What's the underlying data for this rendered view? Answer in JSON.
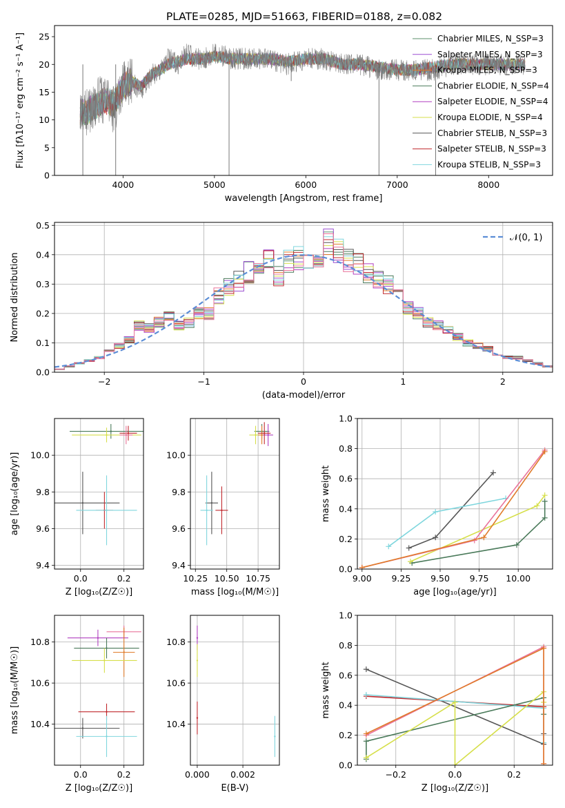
{
  "figure_title": "PLATE=0285, MJD=51663, FIBERID=0188, z=0.082",
  "chart_data": [
    {
      "id": "spectrum",
      "type": "line",
      "xlabel": "wavelength [Angstrom, rest frame]",
      "ylabel": "Flux [fλ10⁻¹⁷ erg cm⁻² s⁻¹ A⁻¹]",
      "xlim": [
        3250,
        8700
      ],
      "ylim": [
        0,
        27
      ],
      "xticks": [
        4000,
        5000,
        6000,
        7000,
        8000
      ],
      "yticks": [
        0,
        5,
        10,
        15,
        20,
        25
      ],
      "grid": false,
      "legend_position": "top-right",
      "data_x": [
        3530,
        3600,
        3700,
        3800,
        3900,
        4000,
        4100,
        4200,
        4300,
        4400,
        4500,
        4600,
        4700,
        4800,
        4900,
        5000,
        5200,
        5400,
        5600,
        5800,
        6000,
        6200,
        6400,
        6600,
        6800,
        7000,
        7200,
        7400,
        7600,
        7800,
        8000,
        8200,
        8400
      ],
      "data_y": [
        12,
        11,
        13,
        14,
        12,
        16,
        17,
        15,
        18,
        19,
        21,
        20,
        22,
        21,
        21,
        22,
        21,
        21,
        21,
        20,
        21,
        21,
        20,
        20,
        19,
        19,
        19,
        19,
        20,
        20,
        20,
        20,
        20
      ],
      "model_y": [
        11.5,
        11.5,
        12.5,
        13.5,
        13,
        16,
        17,
        16,
        18,
        19,
        20,
        20.5,
        21,
        21,
        21,
        21.5,
        21,
        21,
        21,
        20.5,
        21,
        21,
        20,
        20,
        19.5,
        19,
        19,
        19.5,
        20,
        20,
        20,
        20,
        20
      ],
      "series": [
        {
          "name": "Chabrier MILES, N_SSP=3",
          "color": "#5a8f6a"
        },
        {
          "name": "Salpeter MILES, N_SSP=3",
          "color": "#9b4fd1"
        },
        {
          "name": "Kroupa MILES, N_SSP=3",
          "color": "#e07b2a"
        },
        {
          "name": "Chabrier ELODIE, N_SSP=4",
          "color": "#4a7a5a"
        },
        {
          "name": "Salpeter ELODIE, N_SSP=4",
          "color": "#b03fbf"
        },
        {
          "name": "Kroupa ELODIE, N_SSP=4",
          "color": "#d6df4a"
        },
        {
          "name": "Chabrier STELIB, N_SSP=3",
          "color": "#555555"
        },
        {
          "name": "Salpeter STELIB, N_SSP=3",
          "color": "#c0282d"
        },
        {
          "name": "Kroupa STELIB, N_SSP=3",
          "color": "#7fd6dd"
        }
      ]
    },
    {
      "id": "residuals",
      "type": "line",
      "xlabel": "(data-model)/error",
      "ylabel": "Normed distribution",
      "xlim": [
        -2.5,
        2.5
      ],
      "ylim": [
        0,
        0.51
      ],
      "xticks": [
        -2,
        -1,
        0,
        1,
        2
      ],
      "yticks": [
        0.0,
        0.1,
        0.2,
        0.3,
        0.4,
        0.5
      ],
      "grid": true,
      "legend_position": "top-right",
      "legend": "𝒩(0, 1)",
      "bin_centers": [
        -2.45,
        -2.35,
        -2.25,
        -2.15,
        -2.05,
        -1.95,
        -1.85,
        -1.75,
        -1.65,
        -1.55,
        -1.45,
        -1.35,
        -1.25,
        -1.15,
        -1.05,
        -0.95,
        -0.85,
        -0.75,
        -0.65,
        -0.55,
        -0.45,
        -0.35,
        -0.25,
        -0.15,
        -0.05,
        0.05,
        0.15,
        0.25,
        0.35,
        0.45,
        0.55,
        0.65,
        0.75,
        0.85,
        0.95,
        1.05,
        1.15,
        1.25,
        1.35,
        1.45,
        1.55,
        1.65,
        1.75,
        1.85,
        1.95,
        2.05,
        2.15,
        2.25,
        2.35,
        2.45
      ],
      "hist_values": [
        0.01,
        0.02,
        0.03,
        0.04,
        0.05,
        0.07,
        0.09,
        0.11,
        0.16,
        0.15,
        0.17,
        0.19,
        0.16,
        0.17,
        0.2,
        0.2,
        0.26,
        0.29,
        0.31,
        0.34,
        0.37,
        0.39,
        0.33,
        0.38,
        0.39,
        0.39,
        0.36,
        0.44,
        0.41,
        0.38,
        0.37,
        0.34,
        0.31,
        0.3,
        0.27,
        0.22,
        0.2,
        0.17,
        0.16,
        0.14,
        0.12,
        0.1,
        0.09,
        0.08,
        0.06,
        0.05,
        0.05,
        0.04,
        0.03,
        0.02
      ],
      "hist_colors": [
        "#5a8f6a",
        "#9b4fd1",
        "#e07b2a",
        "#4a7a5a",
        "#b03fbf",
        "#d6df4a",
        "#555555",
        "#c0282d",
        "#7fd6dd",
        "#e9739a"
      ],
      "gaussian_color": "#5b8dd6"
    },
    {
      "id": "age_vs_Z",
      "type": "scatter",
      "xlabel": "Z [log₁₀(Z/Z☉)]",
      "ylabel": "age  [log₁₀(age/yr)]",
      "xlim": [
        -0.12,
        0.29
      ],
      "ylim": [
        9.38,
        10.2
      ],
      "xticks": [
        0.0,
        0.2
      ],
      "xticklabels": [
        "0.0",
        "0.2"
      ],
      "yticks": [
        9.4,
        9.6,
        9.8,
        10.0
      ],
      "yticklabels": [
        "9.4",
        "9.6",
        "9.8",
        "10.0"
      ],
      "grid": true,
      "points": [
        {
          "x": 0.14,
          "y": 10.13,
          "xerr": 0.19,
          "yerr": 0.04,
          "color": "#4a7a5a"
        },
        {
          "x": 0.12,
          "y": 10.11,
          "xerr": 0.16,
          "yerr": 0.04,
          "color": "#d6df4a"
        },
        {
          "x": 0.22,
          "y": 10.12,
          "xerr": 0.04,
          "yerr": 0.04,
          "color": "#c0282d"
        },
        {
          "x": 0.21,
          "y": 10.11,
          "xerr": 0.03,
          "yerr": 0.05,
          "color": "#e9739a"
        },
        {
          "x": 0.01,
          "y": 9.74,
          "xerr": 0.17,
          "yerr": 0.17,
          "color": "#555555"
        },
        {
          "x": 0.11,
          "y": 9.7,
          "xerr": 0.04,
          "yerr": 0.1,
          "color": "#c0282d"
        },
        {
          "x": 0.12,
          "y": 9.7,
          "xerr": 0.14,
          "yerr": 0.19,
          "color": "#7fd6dd"
        }
      ]
    },
    {
      "id": "age_vs_mass",
      "type": "scatter",
      "xlabel": "mass [log₁₀(M/M☉)]",
      "ylabel": "",
      "xlim": [
        10.21,
        10.92
      ],
      "ylim": [
        9.38,
        10.2
      ],
      "xticks": [
        10.25,
        10.5,
        10.75
      ],
      "xticklabels": [
        "10.25",
        "10.50",
        "10.75"
      ],
      "yticks": [
        9.4,
        9.6,
        9.8,
        10.0
      ],
      "yticklabels": [
        "9.4",
        "9.6",
        "9.8",
        "10.0"
      ],
      "grid": true,
      "points": [
        {
          "x": 10.78,
          "y": 10.13,
          "xerr": 0.06,
          "yerr": 0.04,
          "color": "#4a7a5a"
        },
        {
          "x": 10.73,
          "y": 10.11,
          "xerr": 0.05,
          "yerr": 0.05,
          "color": "#d6df4a"
        },
        {
          "x": 10.78,
          "y": 10.11,
          "xerr": 0.03,
          "yerr": 0.05,
          "color": "#e07b2a"
        },
        {
          "x": 10.83,
          "y": 10.11,
          "xerr": 0.04,
          "yerr": 0.06,
          "color": "#b03fbf"
        },
        {
          "x": 10.8,
          "y": 10.12,
          "xerr": 0.05,
          "yerr": 0.06,
          "color": "#c0282d"
        },
        {
          "x": 10.38,
          "y": 9.74,
          "xerr": 0.05,
          "yerr": 0.17,
          "color": "#555555"
        },
        {
          "x": 10.46,
          "y": 9.7,
          "xerr": 0.05,
          "yerr": 0.13,
          "color": "#c0282d"
        },
        {
          "x": 10.34,
          "y": 9.7,
          "xerr": 0.05,
          "yerr": 0.19,
          "color": "#7fd6dd"
        }
      ]
    },
    {
      "id": "weight_vs_age",
      "type": "line",
      "xlabel": "age  [log₁₀(age/yr)]",
      "ylabel": "mass weight",
      "xlim": [
        8.97,
        10.22
      ],
      "ylim": [
        0,
        1.0
      ],
      "xticks": [
        9.0,
        9.25,
        9.5,
        9.75,
        10.0
      ],
      "xticklabels": [
        "9.00",
        "9.25",
        "9.50",
        "9.75",
        "10.00"
      ],
      "yticks": [
        0.0,
        0.2,
        0.4,
        0.6,
        0.8,
        1.0
      ],
      "yticklabels": [
        "0.0",
        "0.2",
        "0.4",
        "0.6",
        "0.8",
        "1.0"
      ],
      "grid": true,
      "series": [
        {
          "color": "#555555",
          "points": [
            [
              9.3,
              0.14
            ],
            [
              9.47,
              0.21
            ],
            [
              9.84,
              0.64
            ]
          ]
        },
        {
          "color": "#7fd6dd",
          "points": [
            [
              9.17,
              0.15
            ],
            [
              9.47,
              0.38
            ],
            [
              9.92,
              0.47
            ]
          ]
        },
        {
          "color": "#4a7a5a",
          "points": [
            [
              9.32,
              0.04
            ],
            [
              9.99,
              0.16
            ],
            [
              10.17,
              0.34
            ],
            [
              10.17,
              0.45
            ]
          ]
        },
        {
          "color": "#d6df4a",
          "points": [
            [
              9.31,
              0.05
            ],
            [
              10.12,
              0.42
            ],
            [
              10.17,
              0.49
            ]
          ]
        },
        {
          "color": "#e9739a",
          "points": [
            [
              9.0,
              0.01
            ],
            [
              9.72,
              0.19
            ],
            [
              10.17,
              0.79
            ]
          ]
        },
        {
          "color": "#e07b2a",
          "points": [
            [
              9.0,
              0.01
            ],
            [
              9.78,
              0.21
            ],
            [
              10.17,
              0.78
            ]
          ]
        }
      ]
    },
    {
      "id": "mass_vs_Z",
      "type": "scatter",
      "xlabel": "Z [log₁₀(Z/Z☉)]",
      "ylabel": "mass [log₁₀(M/M☉)]",
      "xlim": [
        -0.12,
        0.29
      ],
      "ylim": [
        10.2,
        10.93
      ],
      "xticks": [
        0.0,
        0.2
      ],
      "xticklabels": [
        "0.0",
        "0.2"
      ],
      "yticks": [
        10.4,
        10.6,
        10.8
      ],
      "yticklabels": [
        "10.4",
        "10.6",
        "10.8"
      ],
      "grid": true,
      "points": [
        {
          "x": 0.2,
          "y": 10.85,
          "xerr": 0.08,
          "yerr": 0.03,
          "color": "#e9739a"
        },
        {
          "x": 0.08,
          "y": 10.82,
          "xerr": 0.14,
          "yerr": 0.04,
          "color": "#b03fbf"
        },
        {
          "x": 0.12,
          "y": 10.77,
          "xerr": 0.15,
          "yerr": 0.05,
          "color": "#4a7a5a"
        },
        {
          "x": 0.2,
          "y": 10.75,
          "xerr": 0.05,
          "yerr": 0.12,
          "color": "#e07b2a"
        },
        {
          "x": 0.11,
          "y": 10.71,
          "xerr": 0.15,
          "yerr": 0.06,
          "color": "#d6df4a"
        },
        {
          "x": 0.12,
          "y": 10.46,
          "xerr": 0.13,
          "yerr": 0.04,
          "color": "#c0282d"
        },
        {
          "x": 0.01,
          "y": 10.38,
          "xerr": 0.17,
          "yerr": 0.05,
          "color": "#555555"
        },
        {
          "x": 0.12,
          "y": 10.34,
          "xerr": 0.14,
          "yerr": 0.1,
          "color": "#7fd6dd"
        }
      ]
    },
    {
      "id": "mass_vs_ebv",
      "type": "scatter",
      "xlabel": "E(B-V)",
      "ylabel": "",
      "xlim": [
        -0.0003,
        0.0036
      ],
      "ylim": [
        10.2,
        10.93
      ],
      "xticks": [
        0.0,
        0.002
      ],
      "xticklabels": [
        "0.000",
        "0.002"
      ],
      "yticks": [
        10.4,
        10.6,
        10.8
      ],
      "yticklabels": [
        "10.4",
        "10.6",
        "10.8"
      ],
      "grid": true,
      "points": [
        {
          "x": 0.0,
          "y": 10.82,
          "xerr": 0,
          "yerr": 0.06,
          "color": "#b03fbf"
        },
        {
          "x": 0.0,
          "y": 10.71,
          "xerr": 0,
          "yerr": 0.08,
          "color": "#d6df4a"
        },
        {
          "x": 0.0,
          "y": 10.43,
          "xerr": 0,
          "yerr": 0.08,
          "color": "#c0282d"
        },
        {
          "x": 0.0034,
          "y": 10.34,
          "xerr": 0,
          "yerr": 0.1,
          "color": "#7fd6dd"
        }
      ]
    },
    {
      "id": "weight_vs_Z",
      "type": "line",
      "xlabel": "Z [log₁₀(Z/Z☉)]",
      "ylabel": "mass weight",
      "xlim": [
        -0.33,
        0.33
      ],
      "ylim": [
        0,
        1.0
      ],
      "xticks": [
        -0.2,
        0.0,
        0.2
      ],
      "xticklabels": [
        "−0.2",
        "0.0",
        "0.2"
      ],
      "yticks": [
        0.0,
        0.2,
        0.4,
        0.6,
        0.8,
        1.0
      ],
      "yticklabels": [
        "0.0",
        "0.2",
        "0.4",
        "0.6",
        "0.8",
        "1.0"
      ],
      "grid": true,
      "series": [
        {
          "color": "#555555",
          "points": [
            [
              -0.3,
              0.64
            ],
            [
              0.3,
              0.14
            ],
            [
              0.3,
              0.21
            ]
          ]
        },
        {
          "color": "#c0282d",
          "points": [
            [
              -0.3,
              0.46
            ],
            [
              0.3,
              0.39
            ]
          ]
        },
        {
          "color": "#7fd6dd",
          "points": [
            [
              -0.3,
              0.47
            ],
            [
              0.3,
              0.38
            ],
            [
              0.3,
              0.15
            ]
          ]
        },
        {
          "color": "#4a7a5a",
          "points": [
            [
              -0.3,
              0.04
            ],
            [
              -0.3,
              0.16
            ],
            [
              0.3,
              0.45
            ],
            [
              0.3,
              0.34
            ]
          ]
        },
        {
          "color": "#d6df4a",
          "points": [
            [
              -0.3,
              0.05
            ],
            [
              0.0,
              0.42
            ],
            [
              0.0,
              0.0
            ],
            [
              0.3,
              0.49
            ],
            [
              0.3,
              0.42
            ]
          ]
        },
        {
          "color": "#e9739a",
          "points": [
            [
              -0.3,
              0.2
            ],
            [
              0.3,
              0.79
            ],
            [
              0.3,
              0.01
            ]
          ]
        },
        {
          "color": "#e07b2a",
          "points": [
            [
              -0.3,
              0.21
            ],
            [
              0.3,
              0.78
            ],
            [
              0.3,
              0.01
            ]
          ]
        }
      ]
    }
  ]
}
